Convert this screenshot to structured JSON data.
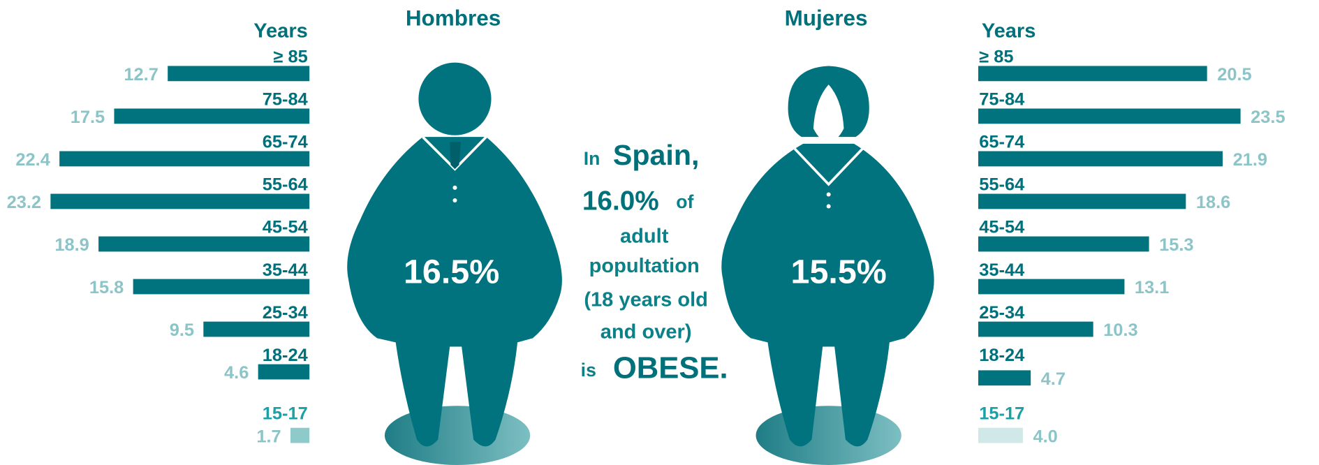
{
  "chart_data": [
    {
      "type": "bar",
      "title": "Hombres",
      "y_label": "Years",
      "total": "16.5%",
      "categories": [
        "≥ 85",
        "75-84",
        "65-74",
        "55-64",
        "45-54",
        "35-44",
        "25-34",
        "18-24",
        "15-17"
      ],
      "values": [
        12.7,
        17.5,
        22.4,
        23.2,
        18.9,
        15.8,
        9.5,
        4.6,
        1.7
      ],
      "value_labels": [
        "12.7",
        "17.5",
        "22.4",
        "23.2",
        "18.9",
        "15.8",
        "9.5",
        "4.6",
        "1.7"
      ],
      "colors": [
        "#00737f",
        "#00737f",
        "#00737f",
        "#00737f",
        "#00737f",
        "#00737f",
        "#00737f",
        "#00737f",
        "#8fcaca"
      ]
    },
    {
      "type": "bar",
      "title": "Mujeres",
      "y_label": "Years",
      "total": "15.5%",
      "categories": [
        "≥ 85",
        "75-84",
        "65-74",
        "55-64",
        "45-54",
        "35-44",
        "25-34",
        "18-24",
        "15-17"
      ],
      "values": [
        20.5,
        23.5,
        21.9,
        18.6,
        15.3,
        13.1,
        10.3,
        4.7,
        4.0
      ],
      "value_labels": [
        "20.5",
        "23.5",
        "21.9",
        "18.6",
        "15.3",
        "13.1",
        "10.3",
        "4.7",
        "4.0"
      ],
      "colors": [
        "#00737f",
        "#00737f",
        "#00737f",
        "#00737f",
        "#00737f",
        "#00737f",
        "#00737f",
        "#00737f",
        "#d1e8e8"
      ]
    }
  ],
  "annotation": {
    "in": "In",
    "country": "Spain,",
    "rate": "16.0%",
    "of": "of",
    "lines": [
      "adult",
      "popultation",
      "(18 years old",
      "and over)"
    ],
    "is": "is",
    "obese": "OBESE."
  }
}
